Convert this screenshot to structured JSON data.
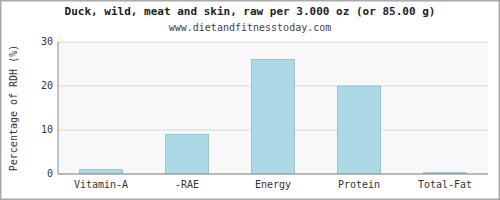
{
  "chart_data": {
    "type": "bar",
    "title": "Duck, wild, meat and skin, raw per 3.000 oz (or 85.00 g)",
    "subtitle": "www.dietandfitnesstoday.com",
    "categories": [
      "Vitamin-A",
      "-RAE",
      "Energy",
      "Protein",
      "Total-Fat"
    ],
    "values": [
      1,
      9,
      26,
      20,
      0.3
    ],
    "color": "#add8e6",
    "ylabel": "Percentage of RDH (%)",
    "ylim": [
      0,
      30
    ],
    "yticks": [
      0,
      10,
      20,
      30
    ],
    "grid": true
  }
}
